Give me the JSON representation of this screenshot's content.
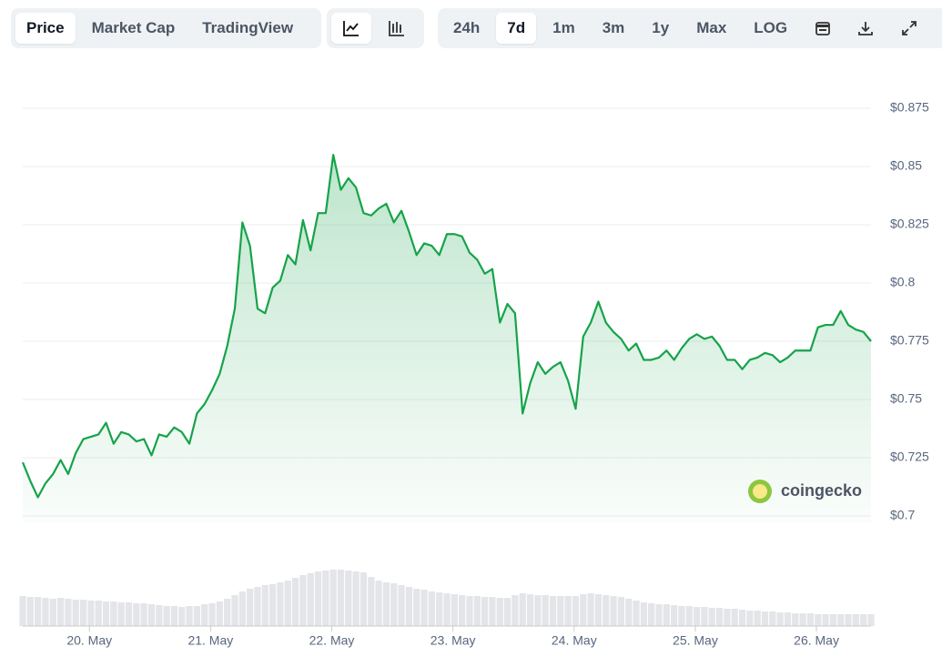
{
  "toolbar": {
    "views": [
      "Price",
      "Market Cap",
      "TradingView"
    ],
    "ranges": [
      "24h",
      "7d",
      "1m",
      "3m",
      "1y",
      "Max",
      "LOG"
    ]
  },
  "watermark": "coingecko",
  "chart_data": {
    "type": "line",
    "color": "#16a34a",
    "grid": true,
    "values": [
      0.723,
      0.715,
      0.708,
      0.714,
      0.718,
      0.724,
      0.718,
      0.727,
      0.733,
      0.734,
      0.735,
      0.74,
      0.731,
      0.736,
      0.735,
      0.732,
      0.733,
      0.726,
      0.735,
      0.734,
      0.738,
      0.736,
      0.731,
      0.744,
      0.748,
      0.754,
      0.761,
      0.773,
      0.789,
      0.826,
      0.816,
      0.789,
      0.787,
      0.798,
      0.801,
      0.812,
      0.808,
      0.827,
      0.814,
      0.83,
      0.83,
      0.855,
      0.84,
      0.845,
      0.841,
      0.83,
      0.829,
      0.832,
      0.834,
      0.826,
      0.831,
      0.822,
      0.812,
      0.817,
      0.816,
      0.812,
      0.821,
      0.821,
      0.82,
      0.813,
      0.81,
      0.804,
      0.806,
      0.783,
      0.791,
      0.787,
      0.744,
      0.757,
      0.766,
      0.761,
      0.764,
      0.766,
      0.758,
      0.746,
      0.777,
      0.783,
      0.792,
      0.783,
      0.779,
      0.776,
      0.771,
      0.774,
      0.767,
      0.767,
      0.768,
      0.771,
      0.767,
      0.772,
      0.776,
      0.778,
      0.776,
      0.777,
      0.773,
      0.767,
      0.767,
      0.763,
      0.767,
      0.768,
      0.77,
      0.769,
      0.766,
      0.768,
      0.771,
      0.771,
      0.771,
      0.781,
      0.782,
      0.782,
      0.788,
      0.782,
      0.78,
      0.779,
      0.775
    ],
    "volume": [
      33,
      32,
      32,
      31,
      30,
      31,
      30,
      29,
      29,
      28,
      28,
      27,
      27,
      26,
      26,
      25,
      25,
      24,
      23,
      22,
      22,
      21,
      22,
      22,
      24,
      25,
      27,
      30,
      34,
      38,
      41,
      43,
      45,
      46,
      48,
      50,
      53,
      56,
      58,
      60,
      61,
      62,
      62,
      61,
      60,
      59,
      54,
      50,
      48,
      47,
      45,
      43,
      41,
      40,
      38,
      37,
      36,
      35,
      34,
      33,
      33,
      32,
      32,
      31,
      31,
      34,
      36,
      35,
      34,
      34,
      33,
      33,
      33,
      33,
      35,
      36,
      35,
      34,
      33,
      32,
      30,
      28,
      26,
      25,
      24,
      24,
      23,
      22,
      22,
      21,
      21,
      20,
      20,
      19,
      19,
      18,
      17,
      17,
      16,
      16,
      15,
      15,
      14,
      14,
      14,
      13,
      13,
      13,
      13,
      13,
      13,
      13,
      13
    ],
    "xlim": [
      0,
      112
    ],
    "xticks": [
      {
        "value": 8.8,
        "label": "20. May"
      },
      {
        "value": 24.8,
        "label": "21. May"
      },
      {
        "value": 40.8,
        "label": "22. May"
      },
      {
        "value": 56.8,
        "label": "23. May"
      },
      {
        "value": 72.8,
        "label": "24. May"
      },
      {
        "value": 88.8,
        "label": "25. May"
      },
      {
        "value": 104.8,
        "label": "26. May"
      }
    ],
    "ylim": [
      0.7,
      0.875
    ],
    "yticks": [
      {
        "value": 0.7,
        "label": "$0.7"
      },
      {
        "value": 0.725,
        "label": "$0.725"
      },
      {
        "value": 0.75,
        "label": "$0.75"
      },
      {
        "value": 0.775,
        "label": "$0.775"
      },
      {
        "value": 0.8,
        "label": "$0.8"
      },
      {
        "value": 0.825,
        "label": "$0.825"
      },
      {
        "value": 0.85,
        "label": "$0.85"
      },
      {
        "value": 0.875,
        "label": "$0.875"
      }
    ]
  }
}
